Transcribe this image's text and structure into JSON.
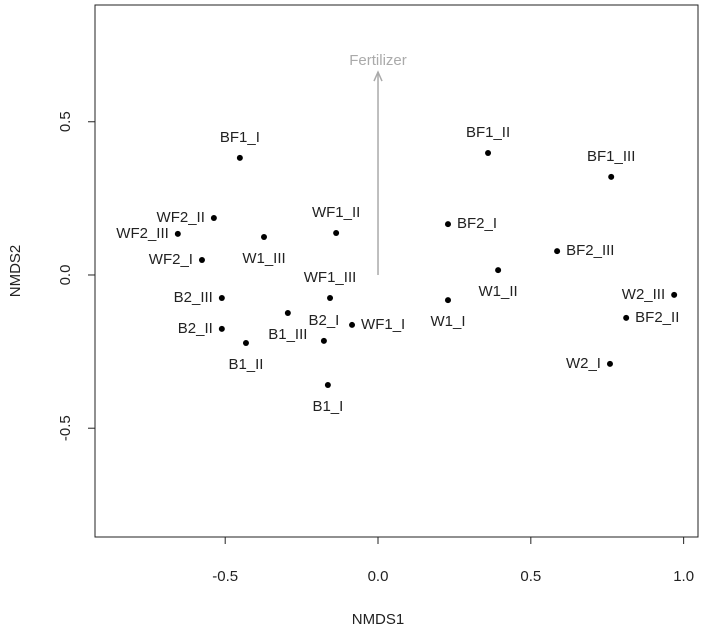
{
  "chart_data": {
    "type": "scatter",
    "xlabel": "NMDS1",
    "ylabel": "NMDS2",
    "xlim": [
      -0.926,
      1.047
    ],
    "ylim": [
      -0.855,
      0.881
    ],
    "xticks": [
      -0.5,
      {
        "value": 0,
        "label": "0.0"
      },
      0.5,
      {
        "value": 1,
        "label": "1.0"
      }
    ],
    "yticks": [
      -0.5,
      {
        "value": 0,
        "label": "0.0"
      },
      0.5
    ],
    "color": "#000000",
    "labels": [
      "BF1_I",
      "BF1_II",
      "BF1_III",
      "WF2_II",
      "WF2_III",
      "WF2_I",
      "W1_III",
      "WF1_II",
      "BF2_I",
      "BF2_III",
      "W1_II",
      "W2_III",
      "BF2_II",
      "W1_I",
      "W2_I",
      "B2_III",
      "B2_II",
      "B1_III",
      "WF1_III",
      "WF1_I",
      "B1_II",
      "B2_I",
      "B1_I"
    ],
    "x": [
      -0.452,
      0.36,
      0.763,
      -0.537,
      -0.655,
      -0.576,
      -0.373,
      -0.137,
      0.229,
      0.586,
      0.393,
      0.969,
      0.812,
      0.229,
      0.759,
      -0.511,
      -0.511,
      -0.295,
      -0.157,
      -0.085,
      -0.432,
      -0.177,
      -0.164
    ],
    "y": [
      0.382,
      0.398,
      0.32,
      0.186,
      0.134,
      0.049,
      0.124,
      0.137,
      0.166,
      0.078,
      0.016,
      -0.065,
      -0.14,
      -0.082,
      -0.29,
      -0.075,
      -0.176,
      -0.124,
      -0.075,
      -0.163,
      -0.222,
      -0.215,
      -0.359
    ],
    "label_sides": [
      "above",
      "above",
      "above",
      "left",
      "left",
      "left",
      "below",
      "above",
      "right",
      "right",
      "below",
      "left",
      "right",
      "below",
      "left",
      "left",
      "left",
      "below",
      "above",
      "right",
      "below",
      "above",
      "below"
    ],
    "arrow": {
      "text": "Fertilizer",
      "color": "#aaaaaa",
      "x": [
        0,
        0
      ],
      "y": [
        0,
        0.662
      ]
    }
  }
}
